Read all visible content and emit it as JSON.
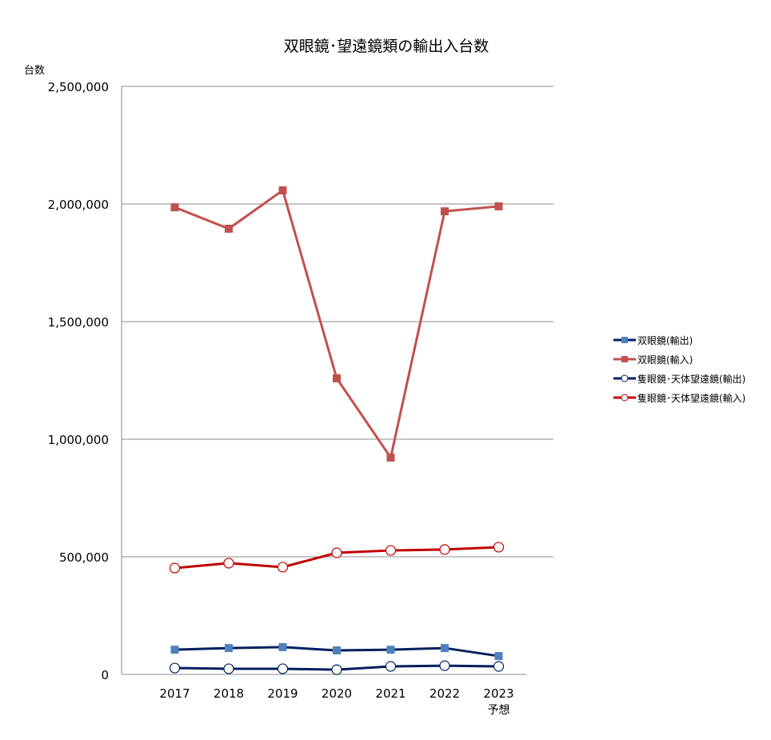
{
  "chart_data": {
    "type": "line",
    "title": "双眼鏡･望遠鏡類の輸出入台数",
    "ylabel": "台数",
    "xlabel": "",
    "ylim": [
      0,
      2500000
    ],
    "yticks": [
      0,
      500000,
      1000000,
      1500000,
      2000000,
      2500000
    ],
    "ytick_labels": [
      "0",
      "500,000",
      "1,000,000",
      "1,500,000",
      "2,000,000",
      "2,500,000"
    ],
    "categories": [
      "2017",
      "2018",
      "2019",
      "2020",
      "2021",
      "2022",
      "2023"
    ],
    "category_sublabels": [
      "",
      "",
      "",
      "",
      "",
      "",
      "予想"
    ],
    "grid": true,
    "legend_position": "right",
    "series": [
      {
        "name": "双眼鏡(輸出)",
        "line_color": "#002060",
        "marker": "square",
        "marker_color": "#4f81bd",
        "values": [
          105000,
          112000,
          116000,
          102000,
          105000,
          112000,
          78000
        ]
      },
      {
        "name": "双眼鏡(輸入)",
        "line_color": "#c0504d",
        "marker": "square",
        "marker_color": "#c0504d",
        "values": [
          1986000,
          1895000,
          2058000,
          1259000,
          922000,
          1969000,
          1990000
        ]
      },
      {
        "name": "隻眼鏡･天体望遠鏡(輸出)",
        "line_color": "#002060",
        "marker": "circle",
        "marker_color": "#002060",
        "values": [
          27000,
          24000,
          24000,
          20000,
          34000,
          37000,
          34000
        ]
      },
      {
        "name": "隻眼鏡･天体望遠鏡(輸入)",
        "line_color": "#c00000",
        "marker": "circle",
        "marker_color": "#c00000",
        "values": [
          452000,
          473000,
          456000,
          517000,
          527000,
          531000,
          541000
        ]
      }
    ]
  }
}
